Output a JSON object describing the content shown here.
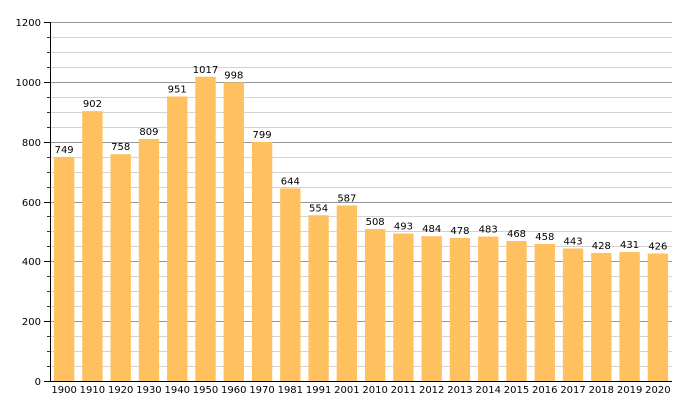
{
  "chart_data": {
    "type": "bar",
    "categories": [
      "1900",
      "1910",
      "1920",
      "1930",
      "1940",
      "1950",
      "1960",
      "1970",
      "1981",
      "1991",
      "2001",
      "2010",
      "2011",
      "2012",
      "2013",
      "2014",
      "2015",
      "2016",
      "2017",
      "2018",
      "2019",
      "2020"
    ],
    "values": [
      749,
      902,
      758,
      809,
      951,
      1017,
      998,
      799,
      644,
      554,
      587,
      508,
      493,
      484,
      478,
      483,
      468,
      458,
      443,
      428,
      431,
      426
    ],
    "value_labels": [
      "749",
      "902",
      "758",
      "809",
      "951",
      "1017",
      "998",
      "799",
      "644",
      "554",
      "587",
      "508",
      "493",
      "484",
      "478",
      "483",
      "468",
      "458",
      "443",
      "428",
      "431",
      "426"
    ],
    "ylim": [
      0,
      1200
    ],
    "y_major_ticks": [
      0,
      200,
      400,
      600,
      800,
      1000,
      1200
    ],
    "y_tick_labels": [
      "0",
      "200",
      "400",
      "600",
      "800",
      "1000",
      "1200"
    ],
    "y_minor_step": 50,
    "grid": true,
    "legend": false,
    "title": "",
    "xlabel": "",
    "ylabel": "",
    "colors": {
      "bar": "#ffc060",
      "gridline": "#000000",
      "axis": "#000000",
      "background": "#ffffff"
    }
  }
}
